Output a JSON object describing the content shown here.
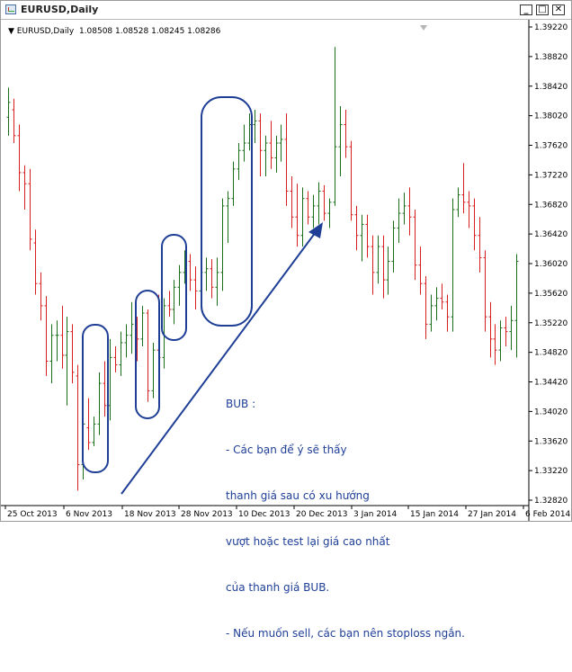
{
  "window": {
    "title": "EURUSD,Daily",
    "icon": "chart-window-icon",
    "buttons": {
      "minimize": "_",
      "maximize": "□",
      "close": "✕"
    }
  },
  "chart_header": {
    "symbol": "EURUSD,Daily",
    "ohlc": "1.08508 1.08528 1.08245 1.08286"
  },
  "axes": {
    "y_ticks": [
      "1.39220",
      "1.38820",
      "1.38420",
      "1.38020",
      "1.37620",
      "1.37220",
      "1.36820",
      "1.36420",
      "1.36020",
      "1.35620",
      "1.35220",
      "1.34820",
      "1.34420",
      "1.34020",
      "1.33620",
      "1.33220",
      "1.32820"
    ],
    "x_ticks": [
      "25 Oct 2013",
      "6 Nov 2013",
      "18 Nov 2013",
      "28 Nov 2013",
      "10 Dec 2013",
      "20 Dec 2013",
      "3 Jan 2014",
      "15 Jan 2014",
      "27 Jan 2014",
      "6 Feb 2014"
    ]
  },
  "annotation": {
    "lines": [
      "BUB :",
      "- Các bạn để ý sẽ thấy",
      "thanh giá sau có xu hướng",
      "vượt hoặc test lại giá cao nhất",
      "của thanh giá BUB.",
      "- Nếu muốn sell, các bạn nên stoploss ngắn."
    ]
  },
  "colors": {
    "up": "#1a6e1a",
    "down": "#d81e1e",
    "annotation": "#1f3f97"
  },
  "chart_data": {
    "type": "ohlc",
    "y_range": [
      1.3282,
      1.3922
    ],
    "bars": [
      {
        "o": 1.38,
        "h": 1.384,
        "l": 1.3775,
        "c": 1.382
      },
      {
        "o": 1.381,
        "h": 1.3825,
        "l": 1.3765,
        "c": 1.3775
      },
      {
        "o": 1.3775,
        "h": 1.379,
        "l": 1.37,
        "c": 1.3725
      },
      {
        "o": 1.3725,
        "h": 1.3735,
        "l": 1.3675,
        "c": 1.371
      },
      {
        "o": 1.371,
        "h": 1.373,
        "l": 1.362,
        "c": 1.3635
      },
      {
        "o": 1.363,
        "h": 1.3648,
        "l": 1.356,
        "c": 1.3575
      },
      {
        "o": 1.3575,
        "h": 1.359,
        "l": 1.3525,
        "c": 1.3545
      },
      {
        "o": 1.3545,
        "h": 1.3558,
        "l": 1.345,
        "c": 1.347
      },
      {
        "o": 1.347,
        "h": 1.352,
        "l": 1.344,
        "c": 1.3505
      },
      {
        "o": 1.3505,
        "h": 1.3525,
        "l": 1.347,
        "c": 1.3505
      },
      {
        "o": 1.3505,
        "h": 1.3545,
        "l": 1.346,
        "c": 1.3478
      },
      {
        "o": 1.3478,
        "h": 1.353,
        "l": 1.341,
        "c": 1.351
      },
      {
        "o": 1.351,
        "h": 1.352,
        "l": 1.344,
        "c": 1.3455
      },
      {
        "o": 1.345,
        "h": 1.3465,
        "l": 1.3295,
        "c": 1.333
      },
      {
        "o": 1.333,
        "h": 1.343,
        "l": 1.331,
        "c": 1.3385
      },
      {
        "o": 1.338,
        "h": 1.342,
        "l": 1.335,
        "c": 1.336
      },
      {
        "o": 1.336,
        "h": 1.3395,
        "l": 1.3355,
        "c": 1.3385
      },
      {
        "o": 1.3385,
        "h": 1.3455,
        "l": 1.337,
        "c": 1.344
      },
      {
        "o": 1.344,
        "h": 1.347,
        "l": 1.3395,
        "c": 1.341
      },
      {
        "o": 1.341,
        "h": 1.35,
        "l": 1.339,
        "c": 1.3475
      },
      {
        "o": 1.3475,
        "h": 1.349,
        "l": 1.3455,
        "c": 1.3465
      },
      {
        "o": 1.3465,
        "h": 1.351,
        "l": 1.345,
        "c": 1.3495
      },
      {
        "o": 1.3495,
        "h": 1.352,
        "l": 1.3475,
        "c": 1.3505
      },
      {
        "o": 1.3505,
        "h": 1.355,
        "l": 1.348,
        "c": 1.352
      },
      {
        "o": 1.352,
        "h": 1.353,
        "l": 1.347,
        "c": 1.35
      },
      {
        "o": 1.35,
        "h": 1.3545,
        "l": 1.349,
        "c": 1.3535
      },
      {
        "o": 1.3535,
        "h": 1.354,
        "l": 1.3415,
        "c": 1.343
      },
      {
        "o": 1.343,
        "h": 1.3495,
        "l": 1.342,
        "c": 1.3485
      },
      {
        "o": 1.3485,
        "h": 1.356,
        "l": 1.346,
        "c": 1.3475
      },
      {
        "o": 1.3475,
        "h": 1.3555,
        "l": 1.346,
        "c": 1.3545
      },
      {
        "o": 1.3545,
        "h": 1.3565,
        "l": 1.353,
        "c": 1.354
      },
      {
        "o": 1.354,
        "h": 1.358,
        "l": 1.352,
        "c": 1.357
      },
      {
        "o": 1.357,
        "h": 1.36,
        "l": 1.3545,
        "c": 1.359
      },
      {
        "o": 1.359,
        "h": 1.362,
        "l": 1.3575,
        "c": 1.3605
      },
      {
        "o": 1.3605,
        "h": 1.3615,
        "l": 1.3565,
        "c": 1.358
      },
      {
        "o": 1.358,
        "h": 1.3598,
        "l": 1.354,
        "c": 1.3565
      },
      {
        "o": 1.3565,
        "h": 1.3595,
        "l": 1.3555,
        "c": 1.359
      },
      {
        "o": 1.359,
        "h": 1.361,
        "l": 1.3565,
        "c": 1.3595
      },
      {
        "o": 1.3595,
        "h": 1.3608,
        "l": 1.3555,
        "c": 1.357
      },
      {
        "o": 1.357,
        "h": 1.361,
        "l": 1.3545,
        "c": 1.359
      },
      {
        "o": 1.359,
        "h": 1.369,
        "l": 1.3565,
        "c": 1.368
      },
      {
        "o": 1.368,
        "h": 1.37,
        "l": 1.363,
        "c": 1.369
      },
      {
        "o": 1.369,
        "h": 1.374,
        "l": 1.368,
        "c": 1.373
      },
      {
        "o": 1.373,
        "h": 1.3765,
        "l": 1.3715,
        "c": 1.3755
      },
      {
        "o": 1.3755,
        "h": 1.379,
        "l": 1.374,
        "c": 1.3765
      },
      {
        "o": 1.3765,
        "h": 1.3805,
        "l": 1.3755,
        "c": 1.379
      },
      {
        "o": 1.379,
        "h": 1.381,
        "l": 1.3765,
        "c": 1.3795
      },
      {
        "o": 1.3795,
        "h": 1.3805,
        "l": 1.372,
        "c": 1.3755
      },
      {
        "o": 1.3755,
        "h": 1.3775,
        "l": 1.372,
        "c": 1.3765
      },
      {
        "o": 1.3765,
        "h": 1.3795,
        "l": 1.373,
        "c": 1.3745
      },
      {
        "o": 1.3745,
        "h": 1.3775,
        "l": 1.3725,
        "c": 1.3765
      },
      {
        "o": 1.3765,
        "h": 1.379,
        "l": 1.374,
        "c": 1.377
      },
      {
        "o": 1.377,
        "h": 1.3805,
        "l": 1.368,
        "c": 1.37
      },
      {
        "o": 1.37,
        "h": 1.372,
        "l": 1.365,
        "c": 1.3665
      },
      {
        "o": 1.3665,
        "h": 1.371,
        "l": 1.3625,
        "c": 1.364
      },
      {
        "o": 1.364,
        "h": 1.3705,
        "l": 1.3625,
        "c": 1.369
      },
      {
        "o": 1.369,
        "h": 1.37,
        "l": 1.3655,
        "c": 1.3665
      },
      {
        "o": 1.3665,
        "h": 1.3695,
        "l": 1.365,
        "c": 1.368
      },
      {
        "o": 1.368,
        "h": 1.3712,
        "l": 1.3655,
        "c": 1.37
      },
      {
        "o": 1.37,
        "h": 1.3708,
        "l": 1.366,
        "c": 1.367
      },
      {
        "o": 1.367,
        "h": 1.369,
        "l": 1.365,
        "c": 1.3685
      },
      {
        "o": 1.3685,
        "h": 1.3895,
        "l": 1.368,
        "c": 1.376
      },
      {
        "o": 1.376,
        "h": 1.3815,
        "l": 1.372,
        "c": 1.379
      },
      {
        "o": 1.379,
        "h": 1.381,
        "l": 1.3745,
        "c": 1.376
      },
      {
        "o": 1.376,
        "h": 1.3768,
        "l": 1.366,
        "c": 1.3668
      },
      {
        "o": 1.3668,
        "h": 1.368,
        "l": 1.362,
        "c": 1.364
      },
      {
        "o": 1.364,
        "h": 1.3668,
        "l": 1.3605,
        "c": 1.3655
      },
      {
        "o": 1.3655,
        "h": 1.3668,
        "l": 1.361,
        "c": 1.3625
      },
      {
        "o": 1.3625,
        "h": 1.364,
        "l": 1.356,
        "c": 1.359
      },
      {
        "o": 1.359,
        "h": 1.364,
        "l": 1.3575,
        "c": 1.3625
      },
      {
        "o": 1.3625,
        "h": 1.364,
        "l": 1.3555,
        "c": 1.358
      },
      {
        "o": 1.358,
        "h": 1.3625,
        "l": 1.356,
        "c": 1.3605
      },
      {
        "o": 1.3605,
        "h": 1.366,
        "l": 1.359,
        "c": 1.365
      },
      {
        "o": 1.365,
        "h": 1.369,
        "l": 1.363,
        "c": 1.367
      },
      {
        "o": 1.367,
        "h": 1.3698,
        "l": 1.3655,
        "c": 1.368
      },
      {
        "o": 1.368,
        "h": 1.3705,
        "l": 1.364,
        "c": 1.3665
      },
      {
        "o": 1.3665,
        "h": 1.3675,
        "l": 1.358,
        "c": 1.36
      },
      {
        "o": 1.36,
        "h": 1.3625,
        "l": 1.356,
        "c": 1.3575
      },
      {
        "o": 1.3575,
        "h": 1.3585,
        "l": 1.35,
        "c": 1.352
      },
      {
        "o": 1.352,
        "h": 1.356,
        "l": 1.351,
        "c": 1.3545
      },
      {
        "o": 1.3545,
        "h": 1.357,
        "l": 1.3525,
        "c": 1.3555
      },
      {
        "o": 1.3555,
        "h": 1.3575,
        "l": 1.354,
        "c": 1.355
      },
      {
        "o": 1.355,
        "h": 1.356,
        "l": 1.351,
        "c": 1.353
      },
      {
        "o": 1.353,
        "h": 1.369,
        "l": 1.351,
        "c": 1.3675
      },
      {
        "o": 1.3675,
        "h": 1.3705,
        "l": 1.3665,
        "c": 1.3695
      },
      {
        "o": 1.3695,
        "h": 1.3738,
        "l": 1.367,
        "c": 1.3685
      },
      {
        "o": 1.3685,
        "h": 1.37,
        "l": 1.365,
        "c": 1.368
      },
      {
        "o": 1.368,
        "h": 1.369,
        "l": 1.362,
        "c": 1.364
      },
      {
        "o": 1.364,
        "h": 1.3665,
        "l": 1.359,
        "c": 1.361
      },
      {
        "o": 1.361,
        "h": 1.362,
        "l": 1.351,
        "c": 1.353
      },
      {
        "o": 1.353,
        "h": 1.355,
        "l": 1.3475,
        "c": 1.35
      },
      {
        "o": 1.35,
        "h": 1.352,
        "l": 1.3465,
        "c": 1.3485
      },
      {
        "o": 1.3485,
        "h": 1.3525,
        "l": 1.347,
        "c": 1.3515
      },
      {
        "o": 1.3515,
        "h": 1.353,
        "l": 1.349,
        "c": 1.351
      },
      {
        "o": 1.351,
        "h": 1.3545,
        "l": 1.3485,
        "c": 1.3525
      },
      {
        "o": 1.3525,
        "h": 1.3615,
        "l": 1.3475,
        "c": 1.3605
      }
    ]
  }
}
